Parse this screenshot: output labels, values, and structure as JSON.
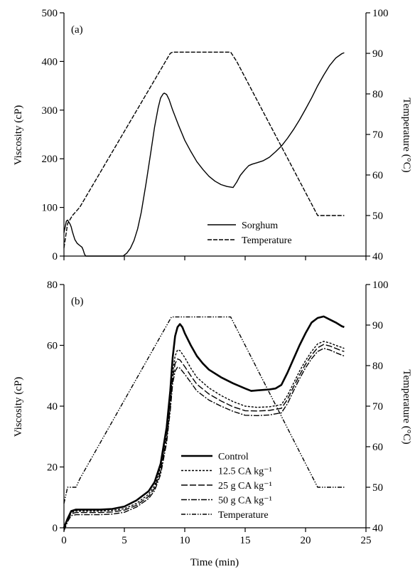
{
  "chart_data": [
    {
      "type": "line",
      "panel_label": "(a)",
      "xlabel": "",
      "ylabel": "Viscosity (cP)",
      "y2label": "Temperature (°C)",
      "xlim": [
        0,
        25
      ],
      "ylim": [
        0,
        500
      ],
      "y2lim": [
        40,
        100
      ],
      "x_ticks": [
        0,
        5,
        10,
        15,
        20,
        25
      ],
      "x_tick_labels_shown": false,
      "y_ticks": [
        0,
        100,
        200,
        300,
        400,
        500
      ],
      "y2_ticks": [
        40,
        50,
        60,
        70,
        80,
        90,
        100
      ],
      "grid": false,
      "legend_position": "bottom-right",
      "series": [
        {
          "name": "Sorghum",
          "axis": "left",
          "style": "solid",
          "points": [
            [
              0,
              48
            ],
            [
              0.1,
              60
            ],
            [
              0.2,
              72
            ],
            [
              0.3,
              74
            ],
            [
              0.4,
              70
            ],
            [
              0.5,
              66
            ],
            [
              0.6,
              60
            ],
            [
              0.7,
              50
            ],
            [
              0.8,
              42
            ],
            [
              0.9,
              34
            ],
            [
              1.0,
              30
            ],
            [
              1.1,
              26
            ],
            [
              1.2,
              24
            ],
            [
              1.3,
              22
            ],
            [
              1.4,
              20
            ],
            [
              1.5,
              18
            ],
            [
              1.6,
              12
            ],
            [
              1.7,
              4
            ],
            [
              1.8,
              0
            ],
            [
              2.0,
              0
            ],
            [
              3,
              0
            ],
            [
              4,
              0
            ],
            [
              4.9,
              0
            ],
            [
              5.0,
              2
            ],
            [
              5.2,
              6
            ],
            [
              5.5,
              16
            ],
            [
              5.8,
              32
            ],
            [
              6.1,
              56
            ],
            [
              6.4,
              90
            ],
            [
              6.8,
              150
            ],
            [
              7.2,
              215
            ],
            [
              7.5,
              265
            ],
            [
              7.8,
              305
            ],
            [
              8.0,
              325
            ],
            [
              8.2,
              333
            ],
            [
              8.3,
              335
            ],
            [
              8.5,
              332
            ],
            [
              8.7,
              322
            ],
            [
              9.0,
              300
            ],
            [
              9.5,
              268
            ],
            [
              10,
              238
            ],
            [
              10.5,
              215
            ],
            [
              11,
              194
            ],
            [
              11.5,
              178
            ],
            [
              12,
              164
            ],
            [
              12.5,
              154
            ],
            [
              13,
              147
            ],
            [
              13.5,
              143
            ],
            [
              14,
              141
            ],
            [
              14.3,
              152
            ],
            [
              14.6,
              166
            ],
            [
              15,
              178
            ],
            [
              15.3,
              186
            ],
            [
              15.6,
              189
            ],
            [
              16,
              192
            ],
            [
              16.5,
              196
            ],
            [
              17,
              203
            ],
            [
              17.5,
              214
            ],
            [
              18,
              226
            ],
            [
              18.5,
              242
            ],
            [
              19,
              260
            ],
            [
              19.5,
              280
            ],
            [
              20,
              302
            ],
            [
              20.5,
              325
            ],
            [
              21,
              350
            ],
            [
              21.5,
              372
            ],
            [
              22,
              392
            ],
            [
              22.5,
              407
            ],
            [
              23,
              416
            ],
            [
              23.2,
              418
            ]
          ]
        },
        {
          "name": "Temperature",
          "axis": "right",
          "style": "dashed",
          "points": [
            [
              0,
              42
            ],
            [
              0.3,
              48
            ],
            [
              0.7,
              50
            ],
            [
              1.0,
              51
            ],
            [
              1.3,
              52
            ],
            [
              8.8,
              90
            ],
            [
              9.0,
              90.3
            ],
            [
              13.8,
              90.3
            ],
            [
              14.3,
              88
            ],
            [
              21,
              50
            ],
            [
              21.2,
              50
            ],
            [
              23.2,
              50
            ]
          ]
        }
      ]
    },
    {
      "type": "line",
      "panel_label": "(b)",
      "xlabel": "Time (min)",
      "ylabel": "Viscosity (cP)",
      "y2label": "Temperature (°C)",
      "xlim": [
        0,
        25
      ],
      "ylim": [
        0,
        80
      ],
      "y2lim": [
        40,
        100
      ],
      "x_ticks": [
        0,
        5,
        10,
        15,
        20,
        25
      ],
      "x_tick_labels_shown": true,
      "y_ticks": [
        0,
        20,
        40,
        60,
        80
      ],
      "y2_ticks": [
        40,
        50,
        60,
        70,
        80,
        90,
        100
      ],
      "grid": false,
      "legend_position": "bottom-center",
      "series": [
        {
          "name": "Control",
          "axis": "left",
          "style": "solid-thick",
          "points": [
            [
              0,
              0
            ],
            [
              0.3,
              3
            ],
            [
              0.6,
              5.5
            ],
            [
              1,
              6
            ],
            [
              2,
              6
            ],
            [
              3,
              6
            ],
            [
              4,
              6.2
            ],
            [
              5,
              7
            ],
            [
              6,
              9
            ],
            [
              7,
              12
            ],
            [
              7.5,
              15
            ],
            [
              8,
              21
            ],
            [
              8.5,
              33
            ],
            [
              8.8,
              45
            ],
            [
              9,
              56
            ],
            [
              9.2,
              63
            ],
            [
              9.4,
              66
            ],
            [
              9.6,
              67
            ],
            [
              9.8,
              66
            ],
            [
              10,
              64
            ],
            [
              10.5,
              60
            ],
            [
              11,
              56.5
            ],
            [
              11.5,
              54
            ],
            [
              12,
              52
            ],
            [
              13,
              49.5
            ],
            [
              14,
              47.5
            ],
            [
              15,
              45.8
            ],
            [
              15.5,
              45
            ],
            [
              16,
              45.2
            ],
            [
              17,
              45.5
            ],
            [
              17.5,
              45.8
            ],
            [
              18,
              47
            ],
            [
              18.5,
              51
            ],
            [
              19,
              55.5
            ],
            [
              19.5,
              60
            ],
            [
              20,
              64
            ],
            [
              20.5,
              67.5
            ],
            [
              21,
              69
            ],
            [
              21.5,
              69.5
            ],
            [
              22,
              68.5
            ],
            [
              22.5,
              67.5
            ],
            [
              23,
              66.3
            ],
            [
              23.2,
              66
            ]
          ]
        },
        {
          "name": "12.5 CA kg⁻¹",
          "axis": "left",
          "style": "short-dash",
          "points": [
            [
              0,
              0
            ],
            [
              0.3,
              3
            ],
            [
              0.6,
              5
            ],
            [
              1,
              5.5
            ],
            [
              2,
              5.5
            ],
            [
              3,
              5.5
            ],
            [
              4,
              5.7
            ],
            [
              5,
              6.3
            ],
            [
              6,
              8
            ],
            [
              7,
              11
            ],
            [
              7.5,
              13.8
            ],
            [
              8,
              19.5
            ],
            [
              8.5,
              31
            ],
            [
              8.8,
              42
            ],
            [
              9,
              51
            ],
            [
              9.2,
              56.5
            ],
            [
              9.4,
              58.5
            ],
            [
              9.6,
              58.3
            ],
            [
              10,
              56
            ],
            [
              10.5,
              52.5
            ],
            [
              11,
              49.5
            ],
            [
              12,
              46
            ],
            [
              13,
              43.5
            ],
            [
              14,
              41.5
            ],
            [
              15,
              40
            ],
            [
              16,
              39.6
            ],
            [
              17,
              39.8
            ],
            [
              18,
              40.5
            ],
            [
              18.5,
              43.5
            ],
            [
              19,
              47.5
            ],
            [
              19.5,
              51.5
            ],
            [
              20,
              55
            ],
            [
              20.5,
              58
            ],
            [
              21,
              60.5
            ],
            [
              21.5,
              61.3
            ],
            [
              22,
              60.8
            ],
            [
              22.5,
              60
            ],
            [
              23,
              59.3
            ],
            [
              23.2,
              59
            ]
          ]
        },
        {
          "name": "25 g CA kg⁻¹",
          "axis": "left",
          "style": "long-dash",
          "points": [
            [
              0,
              0
            ],
            [
              0.3,
              2.5
            ],
            [
              0.6,
              4.6
            ],
            [
              1,
              5
            ],
            [
              2,
              5
            ],
            [
              3,
              5
            ],
            [
              4,
              5.2
            ],
            [
              5,
              5.8
            ],
            [
              6,
              7.4
            ],
            [
              7,
              10.3
            ],
            [
              7.5,
              13
            ],
            [
              8,
              18.5
            ],
            [
              8.5,
              29.5
            ],
            [
              8.8,
              40
            ],
            [
              9,
              49
            ],
            [
              9.2,
              54
            ],
            [
              9.4,
              55.5
            ],
            [
              9.6,
              55.2
            ],
            [
              10,
              53
            ],
            [
              10.5,
              50
            ],
            [
              11,
              47.2
            ],
            [
              12,
              44
            ],
            [
              13,
              41.7
            ],
            [
              14,
              39.8
            ],
            [
              15,
              38.5
            ],
            [
              16,
              38.4
            ],
            [
              17,
              38.6
            ],
            [
              18,
              39.3
            ],
            [
              18.5,
              42.2
            ],
            [
              19,
              46.3
            ],
            [
              19.5,
              50.2
            ],
            [
              20,
              53.8
            ],
            [
              20.5,
              56.8
            ],
            [
              21,
              59.2
            ],
            [
              21.5,
              60.3
            ],
            [
              22,
              59.8
            ],
            [
              22.5,
              59
            ],
            [
              23,
              58.2
            ],
            [
              23.2,
              58
            ]
          ]
        },
        {
          "name": "50 g CA kg⁻¹",
          "axis": "left",
          "style": "dash-dot",
          "points": [
            [
              0,
              -1
            ],
            [
              0.3,
              2
            ],
            [
              0.6,
              4
            ],
            [
              1,
              4.3
            ],
            [
              2,
              4.3
            ],
            [
              3,
              4.3
            ],
            [
              4,
              4.5
            ],
            [
              5,
              5.1
            ],
            [
              6,
              6.8
            ],
            [
              7,
              9.6
            ],
            [
              7.5,
              12.2
            ],
            [
              8,
              17.5
            ],
            [
              8.5,
              28
            ],
            [
              8.8,
              38.5
            ],
            [
              9,
              47.5
            ],
            [
              9.2,
              51.5
            ],
            [
              9.4,
              52.8
            ],
            [
              9.6,
              52.5
            ],
            [
              10,
              50.5
            ],
            [
              10.5,
              47.8
            ],
            [
              11,
              45
            ],
            [
              12,
              42
            ],
            [
              13,
              40
            ],
            [
              14,
              38.3
            ],
            [
              15,
              37
            ],
            [
              16,
              36.9
            ],
            [
              17,
              37.1
            ],
            [
              18,
              37.8
            ],
            [
              18.5,
              40.8
            ],
            [
              19,
              45
            ],
            [
              19.5,
              49
            ],
            [
              20,
              52.6
            ],
            [
              20.5,
              55.6
            ],
            [
              21,
              58
            ],
            [
              21.5,
              59
            ],
            [
              22,
              58.5
            ],
            [
              22.5,
              57.6
            ],
            [
              23,
              56.8
            ],
            [
              23.2,
              56.5
            ]
          ]
        },
        {
          "name": "Temperature",
          "axis": "right",
          "style": "dash-dot-dot",
          "points": [
            [
              0,
              46
            ],
            [
              0.3,
              50
            ],
            [
              1.0,
              50
            ],
            [
              1.3,
              52
            ],
            [
              8.9,
              92
            ],
            [
              13.8,
              92
            ],
            [
              21,
              50
            ],
            [
              23.2,
              50
            ]
          ]
        }
      ]
    }
  ]
}
